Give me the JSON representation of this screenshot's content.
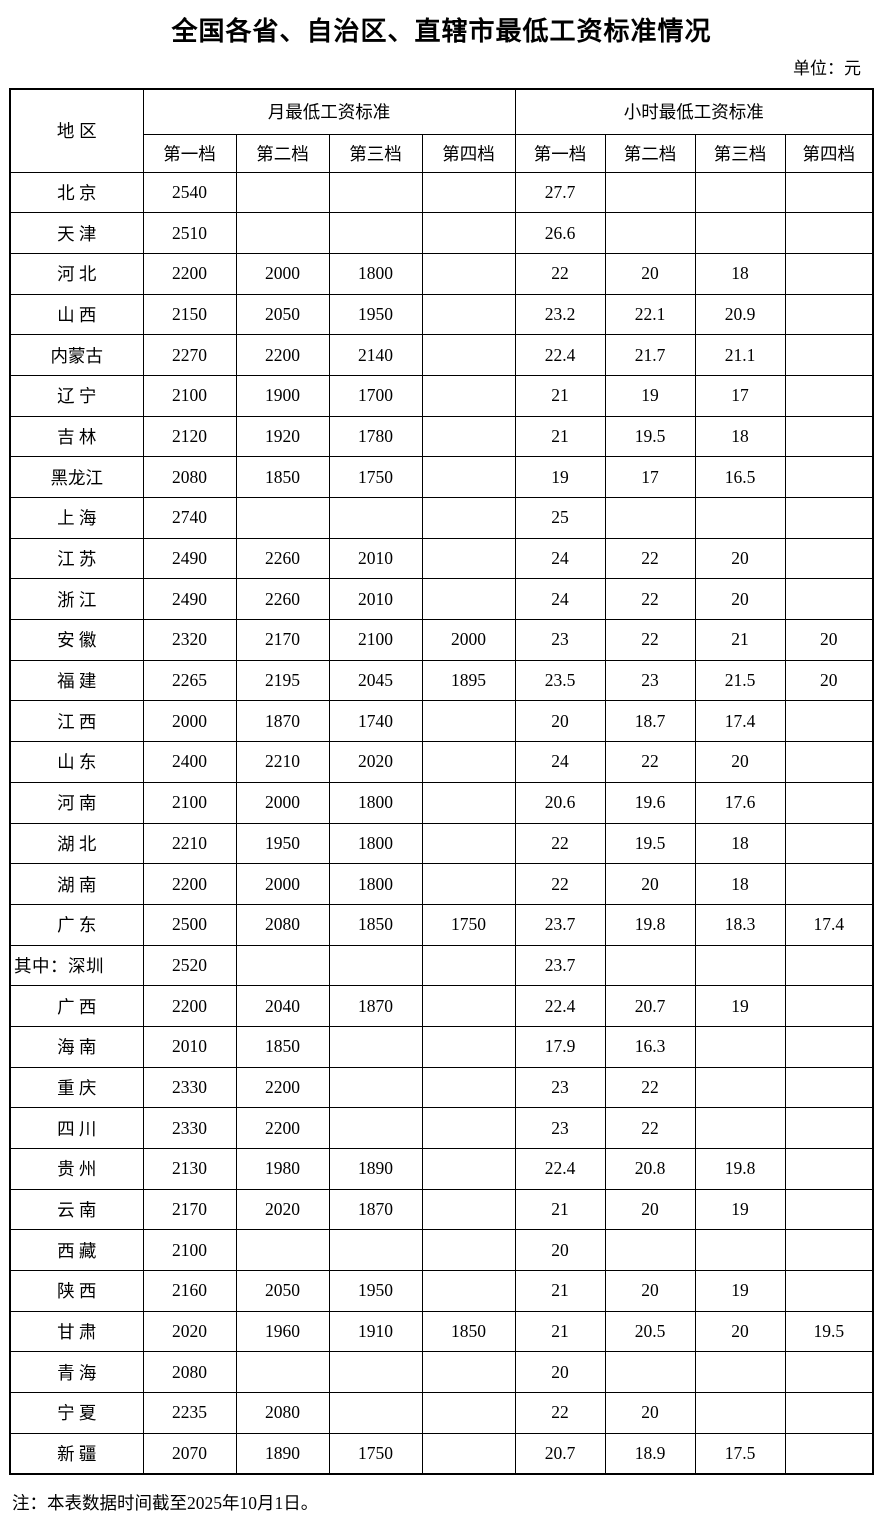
{
  "title": "全国各省、自治区、直辖市最低工资标准情况",
  "unit_label": "单位：元",
  "note": "注：本表数据时间截至2025年10月1日。",
  "table": {
    "region_header": "地 区",
    "group_headers": [
      "月最低工资标准",
      "小时最低工资标准"
    ],
    "tier_headers": [
      "第一档",
      "第二档",
      "第三档",
      "第四档"
    ],
    "rows": [
      {
        "region": "北 京",
        "monthly": [
          "2540",
          "",
          "",
          ""
        ],
        "hourly": [
          "27.7",
          "",
          "",
          ""
        ]
      },
      {
        "region": "天 津",
        "monthly": [
          "2510",
          "",
          "",
          ""
        ],
        "hourly": [
          "26.6",
          "",
          "",
          ""
        ]
      },
      {
        "region": "河 北",
        "monthly": [
          "2200",
          "2000",
          "1800",
          ""
        ],
        "hourly": [
          "22",
          "20",
          "18",
          ""
        ]
      },
      {
        "region": "山 西",
        "monthly": [
          "2150",
          "2050",
          "1950",
          ""
        ],
        "hourly": [
          "23.2",
          "22.1",
          "20.9",
          ""
        ]
      },
      {
        "region": "内蒙古",
        "monthly": [
          "2270",
          "2200",
          "2140",
          ""
        ],
        "hourly": [
          "22.4",
          "21.7",
          "21.1",
          ""
        ]
      },
      {
        "region": "辽 宁",
        "monthly": [
          "2100",
          "1900",
          "1700",
          ""
        ],
        "hourly": [
          "21",
          "19",
          "17",
          ""
        ]
      },
      {
        "region": "吉 林",
        "monthly": [
          "2120",
          "1920",
          "1780",
          ""
        ],
        "hourly": [
          "21",
          "19.5",
          "18",
          ""
        ]
      },
      {
        "region": "黑龙江",
        "monthly": [
          "2080",
          "1850",
          "1750",
          ""
        ],
        "hourly": [
          "19",
          "17",
          "16.5",
          ""
        ]
      },
      {
        "region": "上 海",
        "monthly": [
          "2740",
          "",
          "",
          ""
        ],
        "hourly": [
          "25",
          "",
          "",
          ""
        ]
      },
      {
        "region": "江 苏",
        "monthly": [
          "2490",
          "2260",
          "2010",
          ""
        ],
        "hourly": [
          "24",
          "22",
          "20",
          ""
        ]
      },
      {
        "region": "浙 江",
        "monthly": [
          "2490",
          "2260",
          "2010",
          ""
        ],
        "hourly": [
          "24",
          "22",
          "20",
          ""
        ]
      },
      {
        "region": "安 徽",
        "monthly": [
          "2320",
          "2170",
          "2100",
          "2000"
        ],
        "hourly": [
          "23",
          "22",
          "21",
          "20"
        ]
      },
      {
        "region": "福 建",
        "monthly": [
          "2265",
          "2195",
          "2045",
          "1895"
        ],
        "hourly": [
          "23.5",
          "23",
          "21.5",
          "20"
        ]
      },
      {
        "region": "江 西",
        "monthly": [
          "2000",
          "1870",
          "1740",
          ""
        ],
        "hourly": [
          "20",
          "18.7",
          "17.4",
          ""
        ]
      },
      {
        "region": "山 东",
        "monthly": [
          "2400",
          "2210",
          "2020",
          ""
        ],
        "hourly": [
          "24",
          "22",
          "20",
          ""
        ]
      },
      {
        "region": "河 南",
        "monthly": [
          "2100",
          "2000",
          "1800",
          ""
        ],
        "hourly": [
          "20.6",
          "19.6",
          "17.6",
          ""
        ]
      },
      {
        "region": "湖 北",
        "monthly": [
          "2210",
          "1950",
          "1800",
          ""
        ],
        "hourly": [
          "22",
          "19.5",
          "18",
          ""
        ]
      },
      {
        "region": "湖 南",
        "monthly": [
          "2200",
          "2000",
          "1800",
          ""
        ],
        "hourly": [
          "22",
          "20",
          "18",
          ""
        ]
      },
      {
        "region": "广 东",
        "monthly": [
          "2500",
          "2080",
          "1850",
          "1750"
        ],
        "hourly": [
          "23.7",
          "19.8",
          "18.3",
          "17.4"
        ]
      },
      {
        "region": "其中：深圳",
        "region_align": "left",
        "monthly": [
          "2520",
          "",
          "",
          ""
        ],
        "hourly": [
          "23.7",
          "",
          "",
          ""
        ]
      },
      {
        "region": "广 西",
        "monthly": [
          "2200",
          "2040",
          "1870",
          ""
        ],
        "hourly": [
          "22.4",
          "20.7",
          "19",
          ""
        ]
      },
      {
        "region": "海 南",
        "monthly": [
          "2010",
          "1850",
          "",
          ""
        ],
        "hourly": [
          "17.9",
          "16.3",
          "",
          ""
        ]
      },
      {
        "region": "重 庆",
        "monthly": [
          "2330",
          "2200",
          "",
          ""
        ],
        "hourly": [
          "23",
          "22",
          "",
          ""
        ]
      },
      {
        "region": "四 川",
        "monthly": [
          "2330",
          "2200",
          "",
          ""
        ],
        "hourly": [
          "23",
          "22",
          "",
          ""
        ]
      },
      {
        "region": "贵 州",
        "monthly": [
          "2130",
          "1980",
          "1890",
          ""
        ],
        "hourly": [
          "22.4",
          "20.8",
          "19.8",
          ""
        ]
      },
      {
        "region": "云 南",
        "monthly": [
          "2170",
          "2020",
          "1870",
          ""
        ],
        "hourly": [
          "21",
          "20",
          "19",
          ""
        ]
      },
      {
        "region": "西 藏",
        "monthly": [
          "2100",
          "",
          "",
          ""
        ],
        "hourly": [
          "20",
          "",
          "",
          ""
        ]
      },
      {
        "region": "陕 西",
        "monthly": [
          "2160",
          "2050",
          "1950",
          ""
        ],
        "hourly": [
          "21",
          "20",
          "19",
          ""
        ]
      },
      {
        "region": "甘 肃",
        "monthly": [
          "2020",
          "1960",
          "1910",
          "1850"
        ],
        "hourly": [
          "21",
          "20.5",
          "20",
          "19.5"
        ]
      },
      {
        "region": "青 海",
        "monthly": [
          "2080",
          "",
          "",
          ""
        ],
        "hourly": [
          "20",
          "",
          "",
          ""
        ]
      },
      {
        "region": "宁 夏",
        "monthly": [
          "2235",
          "2080",
          "",
          ""
        ],
        "hourly": [
          "22",
          "20",
          "",
          ""
        ]
      },
      {
        "region": "新 疆",
        "monthly": [
          "2070",
          "1890",
          "1750",
          ""
        ],
        "hourly": [
          "20.7",
          "18.9",
          "17.5",
          ""
        ]
      }
    ]
  }
}
